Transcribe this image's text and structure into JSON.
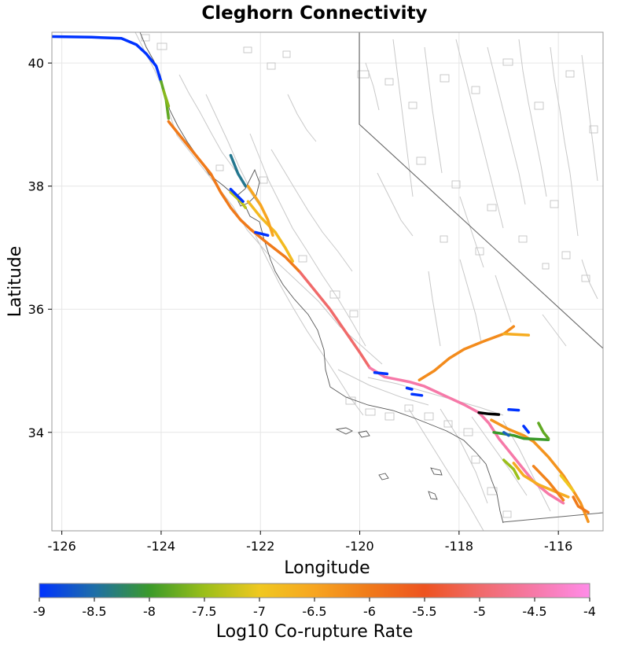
{
  "chart_data": {
    "type": "map",
    "title": "Cleghorn Connectivity",
    "xlabel": "Longitude",
    "ylabel": "Latitude",
    "xlim": [
      -126.2,
      -115.1
    ],
    "ylim": [
      32.4,
      40.5
    ],
    "xticks": [
      -126,
      -124,
      -122,
      -120,
      -118,
      -116
    ],
    "yticks": [
      34,
      36,
      38,
      40
    ],
    "grid": true,
    "colorbar": {
      "label": "Log10 Co-rupture Rate",
      "range": [
        -9,
        -4
      ],
      "ticks": [
        -9,
        -8.5,
        -8,
        -7.5,
        -7,
        -6.5,
        -6,
        -5.5,
        -5,
        -4.5,
        -4
      ],
      "stops": [
        "#0033ff",
        "#1e6ea8",
        "#3a9a2a",
        "#9bbf19",
        "#f0c820",
        "#f7a520",
        "#f07a1a",
        "#ee5320",
        "#f06a6a",
        "#f679a8",
        "#ff8ce8"
      ]
    },
    "source_fault": {
      "name": "Cleghorn",
      "color": "#000000",
      "path": [
        [
          -117.6,
          34.32
        ],
        [
          -117.4,
          34.3
        ],
        [
          -117.2,
          34.29
        ]
      ]
    },
    "ruptures": [
      {
        "value": -9.0,
        "path": [
          [
            -126.2,
            40.43
          ],
          [
            -125.4,
            40.42
          ],
          [
            -124.8,
            40.4
          ],
          [
            -124.5,
            40.3
          ],
          [
            -124.3,
            40.15
          ],
          [
            -124.1,
            39.95
          ],
          [
            -124.0,
            39.7
          ]
        ]
      },
      {
        "value": -7.8,
        "path": [
          [
            -124.0,
            39.7
          ],
          [
            -123.9,
            39.4
          ],
          [
            -123.85,
            39.1
          ]
        ]
      },
      {
        "value": -7.6,
        "path": [
          [
            -123.95,
            39.55
          ],
          [
            -123.85,
            39.3
          ]
        ]
      },
      {
        "value": -6.0,
        "path": [
          [
            -123.85,
            39.05
          ],
          [
            -123.6,
            38.8
          ],
          [
            -123.3,
            38.5
          ],
          [
            -123.0,
            38.2
          ],
          [
            -122.8,
            37.9
          ],
          [
            -122.6,
            37.65
          ],
          [
            -122.4,
            37.45
          ],
          [
            -122.2,
            37.3
          ],
          [
            -121.9,
            37.1
          ],
          [
            -121.5,
            36.85
          ],
          [
            -121.2,
            36.6
          ]
        ]
      },
      {
        "value": -5.0,
        "path": [
          [
            -121.2,
            36.6
          ],
          [
            -120.9,
            36.3
          ],
          [
            -120.6,
            36.0
          ],
          [
            -120.3,
            35.65
          ],
          [
            -120.0,
            35.3
          ],
          [
            -119.8,
            35.05
          ]
        ]
      },
      {
        "value": -4.5,
        "path": [
          [
            -119.8,
            35.05
          ],
          [
            -119.5,
            34.9
          ],
          [
            -119.0,
            34.82
          ],
          [
            -118.7,
            34.75
          ],
          [
            -118.3,
            34.6
          ],
          [
            -117.9,
            34.45
          ],
          [
            -117.6,
            34.32
          ],
          [
            -117.4,
            34.15
          ],
          [
            -117.2,
            33.9
          ],
          [
            -117.0,
            33.7
          ],
          [
            -116.8,
            33.5
          ],
          [
            -116.5,
            33.2
          ],
          [
            -116.2,
            33.0
          ],
          [
            -115.9,
            32.85
          ]
        ]
      },
      {
        "value": -6.2,
        "path": [
          [
            -118.8,
            34.85
          ],
          [
            -118.5,
            35.0
          ],
          [
            -118.2,
            35.2
          ],
          [
            -117.9,
            35.35
          ],
          [
            -117.5,
            35.48
          ],
          [
            -117.1,
            35.6
          ],
          [
            -116.9,
            35.72
          ]
        ]
      },
      {
        "value": -6.6,
        "path": [
          [
            -117.1,
            35.6
          ],
          [
            -116.6,
            35.58
          ]
        ]
      },
      {
        "value": -6.8,
        "path": [
          [
            -122.25,
            37.75
          ],
          [
            -122.0,
            37.5
          ],
          [
            -121.7,
            37.25
          ],
          [
            -121.5,
            37.0
          ],
          [
            -121.35,
            36.78
          ]
        ]
      },
      {
        "value": -7.3,
        "path": [
          [
            -122.6,
            37.9
          ],
          [
            -122.4,
            37.75
          ],
          [
            -122.3,
            37.65
          ]
        ]
      },
      {
        "value": -8.4,
        "path": [
          [
            -122.6,
            38.5
          ],
          [
            -122.45,
            38.2
          ],
          [
            -122.3,
            38.0
          ]
        ]
      },
      {
        "value": -6.5,
        "path": [
          [
            -122.25,
            38.0
          ],
          [
            -122.0,
            37.7
          ],
          [
            -121.85,
            37.45
          ],
          [
            -121.75,
            37.2
          ]
        ]
      },
      {
        "value": -9.0,
        "path": [
          [
            -122.6,
            37.95
          ],
          [
            -122.35,
            37.75
          ]
        ]
      },
      {
        "value": -9.0,
        "path": [
          [
            -122.1,
            37.25
          ],
          [
            -121.85,
            37.2
          ]
        ]
      },
      {
        "value": -9.0,
        "path": [
          [
            -119.7,
            34.97
          ],
          [
            -119.45,
            34.95
          ]
        ]
      },
      {
        "value": -9.0,
        "path": [
          [
            -119.05,
            34.72
          ],
          [
            -118.95,
            34.7
          ]
        ]
      },
      {
        "value": -9.0,
        "path": [
          [
            -118.95,
            34.62
          ],
          [
            -118.75,
            34.6
          ]
        ]
      },
      {
        "value": -6.3,
        "path": [
          [
            -117.35,
            34.2
          ],
          [
            -117.0,
            34.05
          ],
          [
            -116.7,
            33.95
          ],
          [
            -116.5,
            33.85
          ],
          [
            -116.2,
            33.6
          ],
          [
            -115.9,
            33.3
          ],
          [
            -115.7,
            33.05
          ],
          [
            -115.55,
            32.85
          ],
          [
            -115.4,
            32.55
          ]
        ]
      },
      {
        "value": -8.0,
        "path": [
          [
            -117.3,
            34.0
          ],
          [
            -116.9,
            33.95
          ],
          [
            -116.7,
            33.9
          ],
          [
            -116.2,
            33.88
          ]
        ]
      },
      {
        "value": -7.8,
        "path": [
          [
            -116.4,
            34.15
          ],
          [
            -116.3,
            34.0
          ],
          [
            -116.2,
            33.9
          ]
        ]
      },
      {
        "value": -8.6,
        "path": [
          [
            -117.1,
            34.0
          ],
          [
            -117.0,
            33.95
          ]
        ]
      },
      {
        "value": -9.0,
        "path": [
          [
            -116.7,
            34.1
          ],
          [
            -116.6,
            34.0
          ]
        ]
      },
      {
        "value": -9.0,
        "path": [
          [
            -117.0,
            34.37
          ],
          [
            -116.8,
            34.36
          ]
        ]
      },
      {
        "value": -6.6,
        "path": [
          [
            -116.9,
            33.5
          ],
          [
            -116.7,
            33.3
          ],
          [
            -116.4,
            33.15
          ],
          [
            -116.1,
            33.05
          ],
          [
            -115.8,
            32.95
          ]
        ]
      },
      {
        "value": -6.1,
        "path": [
          [
            -116.5,
            33.45
          ],
          [
            -116.2,
            33.2
          ],
          [
            -115.9,
            32.9
          ]
        ]
      },
      {
        "value": -7.0,
        "path": [
          [
            -115.95,
            33.3
          ],
          [
            -115.8,
            33.15
          ],
          [
            -115.7,
            33.05
          ]
        ]
      },
      {
        "value": -7.5,
        "path": [
          [
            -117.1,
            33.55
          ],
          [
            -116.9,
            33.4
          ],
          [
            -116.8,
            33.25
          ]
        ]
      },
      {
        "value": -6.0,
        "path": [
          [
            -115.7,
            32.95
          ],
          [
            -115.6,
            32.8
          ],
          [
            -115.4,
            32.7
          ]
        ]
      }
    ]
  }
}
